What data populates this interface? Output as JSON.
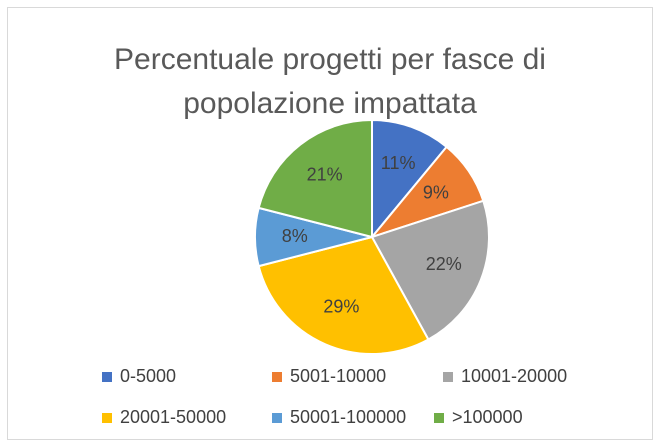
{
  "chart_data": {
    "type": "pie",
    "title": "Percentuale progetti per fasce di popolazione impattata",
    "categories": [
      "0-5000",
      "5001-10000",
      "10001-20000",
      "20001-50000",
      "50001-100000",
      ">100000"
    ],
    "values": [
      11,
      9,
      22,
      29,
      8,
      21
    ],
    "value_labels": [
      "11%",
      "9%",
      "22%",
      "29%",
      "8%",
      "21%"
    ],
    "colors": [
      "#4472c4",
      "#ed7d31",
      "#a5a5a5",
      "#ffc000",
      "#5b9bd5",
      "#70ad47"
    ],
    "legend": "bottom"
  }
}
